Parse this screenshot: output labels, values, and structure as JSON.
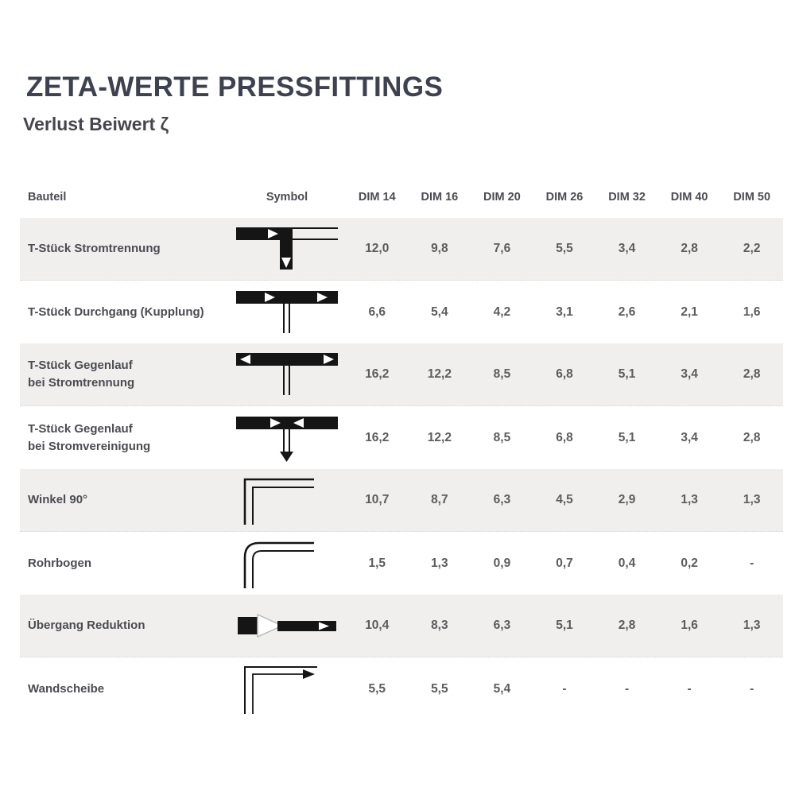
{
  "page": {
    "title": "ZETA-WERTE PRESSFITTINGS",
    "subtitle": "Verlust Beiwert ζ"
  },
  "colors": {
    "title_text": "#3e4250",
    "label_text": "#4b4b52",
    "value_text": "#5c5c5e",
    "row_alt_background": "#f0efee",
    "row_background": "#ffffff",
    "symbol_ink": "#151515"
  },
  "table": {
    "headers": {
      "bauteil": "Bauteil",
      "symbol": "Symbol",
      "dims": [
        "DIM 14",
        "DIM 16",
        "DIM 20",
        "DIM 26",
        "DIM 32",
        "DIM 40",
        "DIM 50"
      ]
    },
    "rows": [
      {
        "label_lines": [
          "T-Stück Stromtrennung"
        ],
        "symbol": "tee-flow-split",
        "values": [
          "12,0",
          "9,8",
          "7,6",
          "5,5",
          "3,4",
          "2,8",
          "2,2"
        ]
      },
      {
        "label_lines": [
          "T-Stück Durchgang (Kupplung)"
        ],
        "symbol": "tee-passage",
        "values": [
          "6,6",
          "5,4",
          "4,2",
          "3,1",
          "2,6",
          "2,1",
          "1,6"
        ]
      },
      {
        "label_lines": [
          "T-Stück Gegenlauf",
          "bei Stromtrennung"
        ],
        "symbol": "tee-counterflow-split",
        "values": [
          "16,2",
          "12,2",
          "8,5",
          "6,8",
          "5,1",
          "3,4",
          "2,8"
        ]
      },
      {
        "label_lines": [
          "T-Stück Gegenlauf",
          "bei Stromvereinigung"
        ],
        "symbol": "tee-counterflow-join",
        "values": [
          "16,2",
          "12,2",
          "8,5",
          "6,8",
          "5,1",
          "3,4",
          "2,8"
        ]
      },
      {
        "label_lines": [
          "Winkel 90°"
        ],
        "symbol": "elbow-90",
        "values": [
          "10,7",
          "8,7",
          "6,3",
          "4,5",
          "2,9",
          "1,3",
          "1,3"
        ]
      },
      {
        "label_lines": [
          "Rohrbogen"
        ],
        "symbol": "pipe-bend",
        "values": [
          "1,5",
          "1,3",
          "0,9",
          "0,7",
          "0,4",
          "0,2",
          "-"
        ]
      },
      {
        "label_lines": [
          "Übergang Reduktion"
        ],
        "symbol": "reducer",
        "values": [
          "10,4",
          "8,3",
          "6,3",
          "5,1",
          "2,8",
          "1,6",
          "1,3"
        ]
      },
      {
        "label_lines": [
          "Wandscheibe"
        ],
        "symbol": "wall-plate",
        "values": [
          "5,5",
          "5,5",
          "5,4",
          "-",
          "-",
          "-",
          "-"
        ]
      }
    ]
  }
}
